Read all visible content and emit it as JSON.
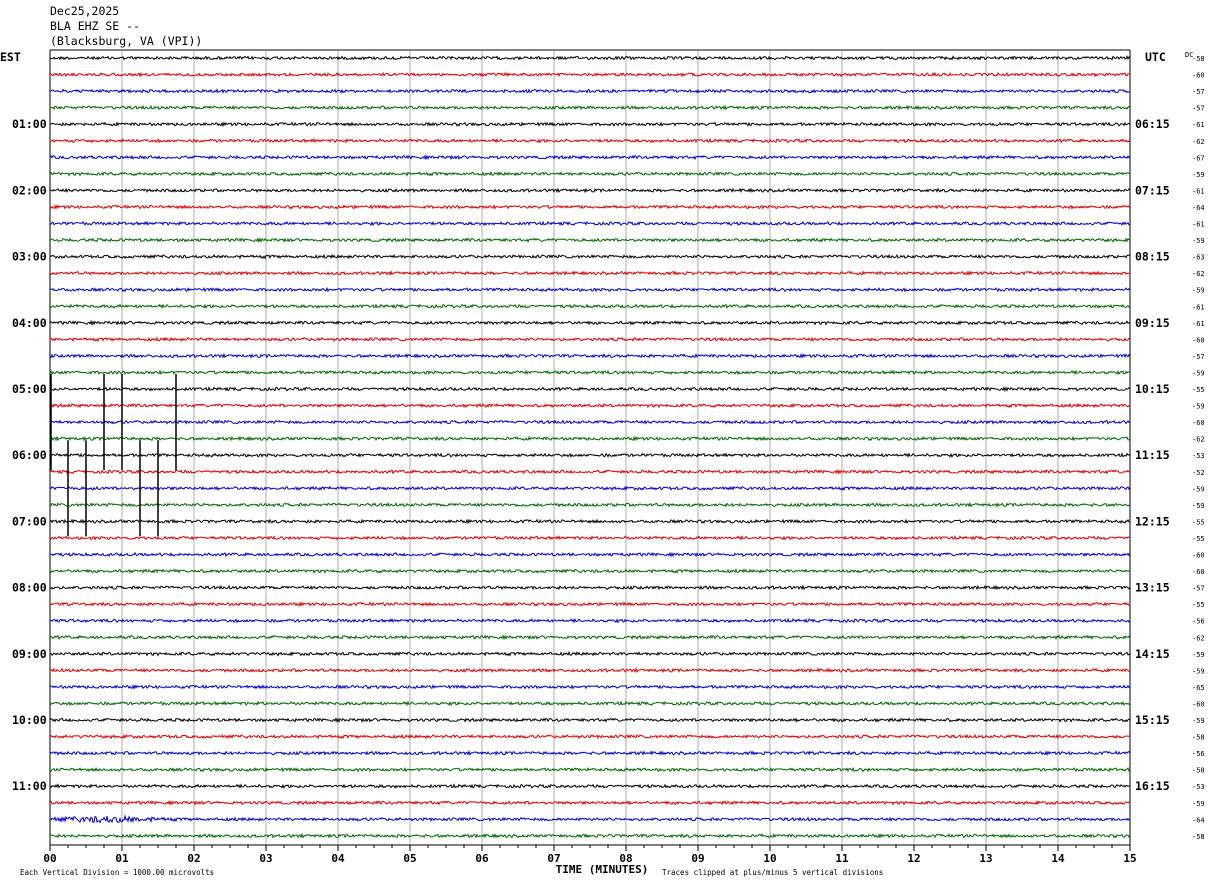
{
  "header": {
    "date": "Dec25,2025",
    "station": "BLA EHZ SE --",
    "location": "(Blacksburg, VA (VPI))"
  },
  "labels": {
    "left_timezone": "EST",
    "right_timezone": "UTC",
    "dc_header": "DC",
    "x_axis_title": "TIME (MINUTES)",
    "scale_note": "Each Vertical Division = 1000.00 microvolts",
    "clip_note": "Traces clipped at plus/minus 5 vertical divisions"
  },
  "colors": {
    "trace_cycle": [
      "#000000",
      "#dd0000",
      "#0000cc",
      "#006600"
    ],
    "grid": "#888888",
    "background": "#ffffff"
  },
  "chart_data": {
    "type": "line",
    "subtype": "helicorder",
    "title": "BLA EHZ SE --",
    "xlabel": "TIME (MINUTES)",
    "xlim": [
      0,
      15
    ],
    "x_ticks": [
      "00",
      "01",
      "02",
      "03",
      "04",
      "05",
      "06",
      "07",
      "08",
      "09",
      "10",
      "11",
      "12",
      "13",
      "14",
      "15"
    ],
    "row_minutes": 15,
    "rows": 48,
    "est_hour_labels": [
      {
        "row": 4,
        "label": "01:00"
      },
      {
        "row": 8,
        "label": "02:00"
      },
      {
        "row": 12,
        "label": "03:00"
      },
      {
        "row": 16,
        "label": "04:00"
      },
      {
        "row": 20,
        "label": "05:00"
      },
      {
        "row": 24,
        "label": "06:00"
      },
      {
        "row": 28,
        "label": "07:00"
      },
      {
        "row": 32,
        "label": "08:00"
      },
      {
        "row": 36,
        "label": "09:00"
      },
      {
        "row": 40,
        "label": "10:00"
      },
      {
        "row": 44,
        "label": "11:00"
      }
    ],
    "utc_hour_labels": [
      {
        "row": 4,
        "label": "06:15"
      },
      {
        "row": 8,
        "label": "07:15"
      },
      {
        "row": 12,
        "label": "08:15"
      },
      {
        "row": 16,
        "label": "09:15"
      },
      {
        "row": 20,
        "label": "10:15"
      },
      {
        "row": 24,
        "label": "11:15"
      },
      {
        "row": 28,
        "label": "12:15"
      },
      {
        "row": 32,
        "label": "13:15"
      },
      {
        "row": 36,
        "label": "14:15"
      },
      {
        "row": 40,
        "label": "15:15"
      },
      {
        "row": 44,
        "label": "16:15"
      }
    ],
    "dc_offsets": [
      "-58",
      "-60",
      "-57",
      "-57",
      "-61",
      "-62",
      "-67",
      "-59",
      "-61",
      "-64",
      "-61",
      "-59",
      "-63",
      "-62",
      "-59",
      "-61",
      "-61",
      "-60",
      "-57",
      "-59",
      "-55",
      "-59",
      "-60",
      "-62",
      "-53",
      "-52",
      "-59",
      "-59",
      "-55",
      "-55",
      "-60",
      "-60",
      "-57",
      "-55",
      "-56",
      "-62",
      "-59",
      "-59",
      "-65",
      "-60",
      "-59",
      "-58",
      "-56",
      "-58",
      "-53",
      "-59",
      "-64",
      "-58"
    ],
    "clipped_spikes": [
      {
        "start_row": 20,
        "end_row": 24,
        "minute": 0.75
      },
      {
        "start_row": 20,
        "end_row": 24,
        "minute": 1.0
      },
      {
        "start_row": 20,
        "end_row": 24,
        "minute": 1.75
      },
      {
        "start_row": 24,
        "end_row": 28,
        "minute": 0.25
      },
      {
        "start_row": 24,
        "end_row": 28,
        "minute": 0.5
      },
      {
        "start_row": 24,
        "end_row": 28,
        "minute": 1.25
      },
      {
        "start_row": 24,
        "end_row": 28,
        "minute": 1.5
      }
    ],
    "noise_bursts": [
      {
        "row": 46,
        "minute": 0.8
      }
    ]
  }
}
